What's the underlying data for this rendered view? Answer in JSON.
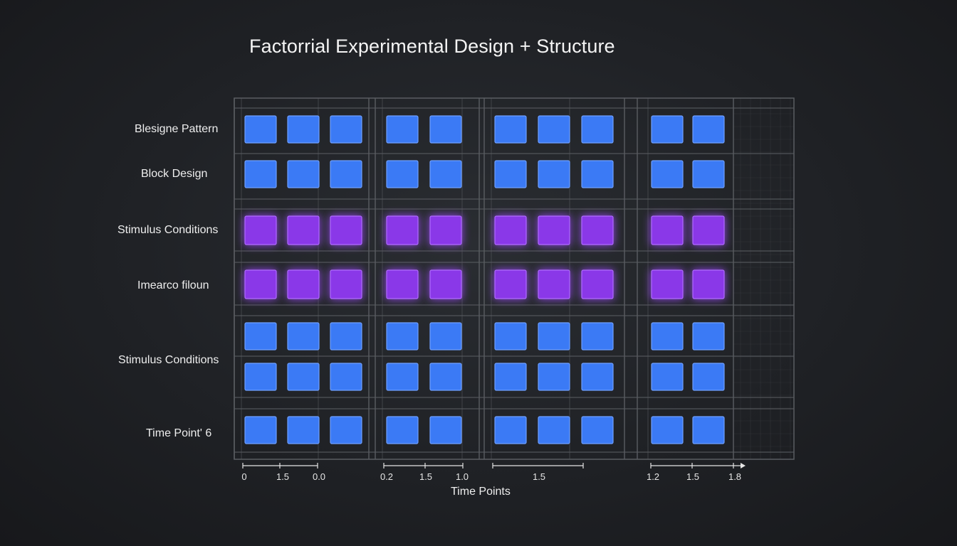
{
  "title": "Factorrial Experimental Design + Structure",
  "colors": {
    "blue": "#3b7af5",
    "purple": "#8a38e8",
    "grid": "#5a5d62"
  },
  "row_labels": [
    "Blesigne Pattern",
    "Block Design",
    "Stimulus Conditions",
    "Imearco filoun",
    "Stimulus Conditions",
    "Time Point' 6"
  ],
  "axis": {
    "title": "Time Points",
    "ticks": [
      "0",
      "1.5",
      "0.0",
      "0.2",
      "1.5",
      "1.0",
      "1.5",
      "1.2",
      "1.5",
      "1.8"
    ]
  },
  "grid": {
    "rows": [
      {
        "color": "blue"
      },
      {
        "color": "blue"
      },
      {
        "color": "purple"
      },
      {
        "color": "purple"
      },
      {
        "color": "blue"
      },
      {
        "color": "blue"
      },
      {
        "color": "blue"
      }
    ],
    "groups": [
      {
        "cells": 3
      },
      {
        "cells": 2
      },
      {
        "cells": 3
      },
      {
        "cells": 2
      }
    ]
  }
}
